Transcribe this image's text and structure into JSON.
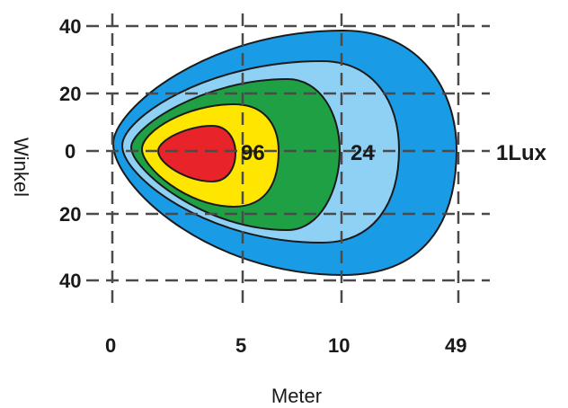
{
  "chart_data": {
    "type": "isolux-contour",
    "xlabel": "Meter",
    "ylabel": "Winkel",
    "x_ticks": [
      "0",
      "5",
      "10",
      "49"
    ],
    "y_ticks": [
      "40",
      "20",
      "0",
      "20",
      "40"
    ],
    "grid": true,
    "lux_levels": [
      {
        "label": "1Lux",
        "color": "#1a9be6"
      },
      {
        "label": "",
        "color": "#8fd0f5"
      },
      {
        "label": "24",
        "color": "#1fa045"
      },
      {
        "label": "96",
        "color": "#ffe600"
      },
      {
        "label": "",
        "color": "#e8232a"
      }
    ]
  }
}
